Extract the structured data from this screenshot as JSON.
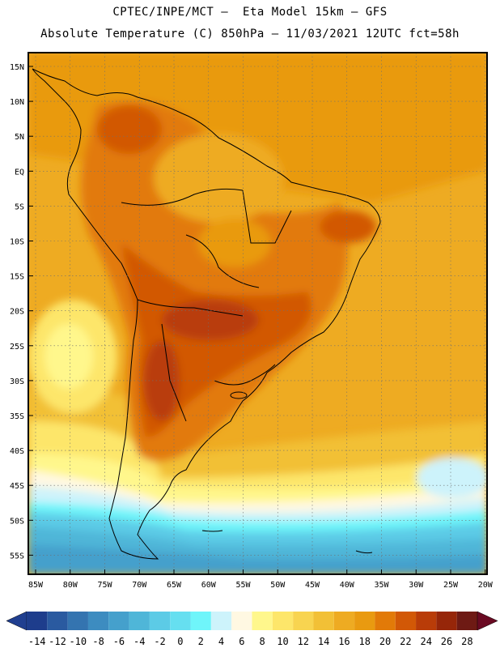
{
  "header": {
    "line1": "CPTEC/INPE/MCT –  Eta Model 15km – GFS",
    "line2": "Absolute Temperature (C) 850hPa – 11/03/2021 12UTC fct=58h"
  },
  "map": {
    "lat_labels": [
      "15N",
      "10N",
      "5N",
      "EQ",
      "5S",
      "10S",
      "15S",
      "20S",
      "25S",
      "30S",
      "35S",
      "40S",
      "45S",
      "50S",
      "55S"
    ],
    "lon_labels": [
      "85W",
      "80W",
      "75W",
      "70W",
      "65W",
      "60W",
      "55W",
      "50W",
      "45W",
      "40W",
      "35W",
      "30W",
      "25W",
      "20W"
    ],
    "lon_range": [
      -85,
      -20
    ],
    "lat_range": [
      -57,
      16
    ]
  },
  "colorbar": {
    "labels": [
      "-14",
      "-12",
      "-10",
      "-8",
      "-6",
      "-4",
      "-2",
      "0",
      "2",
      "4",
      "6",
      "8",
      "10",
      "12",
      "14",
      "16",
      "18",
      "20",
      "22",
      "24",
      "26",
      "28"
    ],
    "colors": [
      "#1e3d8c",
      "#2a5aa0",
      "#3474b0",
      "#3d8cc0",
      "#45a0cc",
      "#4fb6d8",
      "#5ccbe6",
      "#66dff0",
      "#6ff5fa",
      "#cdf3fb",
      "#fff8e2",
      "#fff78c",
      "#fde66a",
      "#f8d450",
      "#f2c036",
      "#eeab22",
      "#e99a10",
      "#e27a08",
      "#d25806",
      "#b93c08",
      "#962609",
      "#6e1a14"
    ],
    "under_color": "#203f90",
    "over_color": "#6a0a22"
  }
}
